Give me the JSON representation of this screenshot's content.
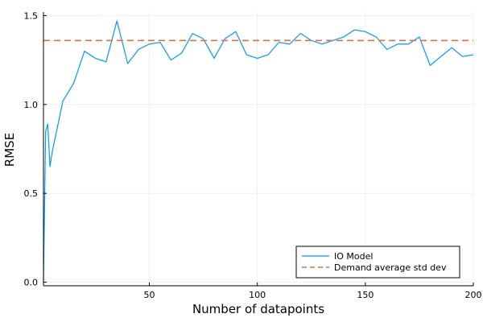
{
  "chart_data": {
    "type": "line",
    "title": "",
    "xlabel": "Number of datapoints",
    "ylabel": "RMSE",
    "xlim": [
      1,
      200
    ],
    "ylim": [
      -0.02,
      1.52
    ],
    "xticks": [
      50,
      100,
      150,
      200
    ],
    "xtick_labels": [
      "50",
      "100",
      "150",
      "200"
    ],
    "yticks": [
      0.0,
      0.5,
      1.0,
      1.5
    ],
    "ytick_labels": [
      "0.0",
      "0.5",
      "1.0",
      "1.5"
    ],
    "grid": true,
    "legend_position": "bottom-right",
    "series": [
      {
        "name": "IO Model",
        "style": "solid",
        "color": "#009af9",
        "x": [
          1,
          2,
          3,
          4,
          5,
          10,
          15,
          20,
          25,
          30,
          35,
          40,
          45,
          50,
          55,
          60,
          65,
          70,
          75,
          80,
          85,
          90,
          95,
          100,
          105,
          110,
          115,
          120,
          125,
          130,
          135,
          140,
          145,
          150,
          155,
          160,
          165,
          170,
          175,
          180,
          185,
          190,
          195,
          200
        ],
        "y": [
          0.0,
          0.85,
          0.89,
          0.65,
          0.73,
          1.02,
          1.12,
          1.3,
          1.26,
          1.24,
          1.47,
          1.23,
          1.31,
          1.34,
          1.35,
          1.25,
          1.29,
          1.4,
          1.37,
          1.26,
          1.37,
          1.41,
          1.28,
          1.26,
          1.28,
          1.35,
          1.34,
          1.4,
          1.36,
          1.34,
          1.36,
          1.38,
          1.42,
          1.41,
          1.38,
          1.31,
          1.34,
          1.34,
          1.38,
          1.22,
          1.27,
          1.32,
          1.27,
          1.28
        ]
      },
      {
        "name": "Demand average std dev",
        "style": "dashed",
        "color": "#e26f46",
        "x": [
          1,
          200
        ],
        "y": [
          1.36,
          1.36
        ]
      }
    ]
  }
}
